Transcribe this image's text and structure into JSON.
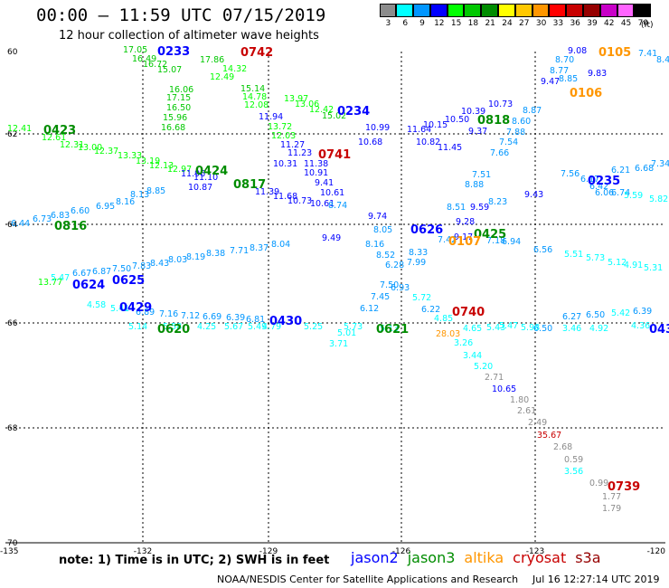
{
  "header": {
    "title": "00:00 – 11:59 UTC 07/15/2019",
    "subtitle": "12 hour collection of altimeter wave heights"
  },
  "color_scale": {
    "unit_label": "(ft)",
    "bins": [
      {
        "label": "3",
        "color": "#8c8c8c"
      },
      {
        "label": "6",
        "color": "#00ffff"
      },
      {
        "label": "9",
        "color": "#0096ff"
      },
      {
        "label": "12",
        "color": "#0000ff"
      },
      {
        "label": "15",
        "color": "#00ff00"
      },
      {
        "label": "18",
        "color": "#00c800"
      },
      {
        "label": "21",
        "color": "#008c00"
      },
      {
        "label": "24",
        "color": "#ffff00"
      },
      {
        "label": "27",
        "color": "#ffc800"
      },
      {
        "label": "30",
        "color": "#ff9600"
      },
      {
        "label": "33",
        "color": "#ff0000"
      },
      {
        "label": "36",
        "color": "#c80000"
      },
      {
        "label": "39",
        "color": "#960000"
      },
      {
        "label": "42",
        "color": "#c800c8"
      },
      {
        "label": "45",
        "color": "#ff64ff"
      },
      {
        "label": "70",
        "color": "#000000"
      }
    ]
  },
  "map": {
    "lat_labels": [
      "60",
      "62",
      "64",
      "66",
      "68",
      "70"
    ],
    "lon_labels": [
      "-135",
      "-132",
      "-129",
      "-126",
      "-123",
      "-120"
    ],
    "pass_labels": [
      {
        "text": "0233",
        "sat": "jason2"
      },
      {
        "text": "0742",
        "sat": "cryosat"
      },
      {
        "text": "0105",
        "sat": "altika"
      },
      {
        "text": "0106",
        "sat": "altika"
      },
      {
        "text": "0234",
        "sat": "jason2"
      },
      {
        "text": "0818",
        "sat": "jason3"
      },
      {
        "text": "0423",
        "sat": "jason3"
      },
      {
        "text": "0741",
        "sat": "cryosat"
      },
      {
        "text": "0424",
        "sat": "jason3"
      },
      {
        "text": "0817",
        "sat": "jason3"
      },
      {
        "text": "0235",
        "sat": "jason2"
      },
      {
        "text": "0816",
        "sat": "jason3"
      },
      {
        "text": "0626",
        "sat": "jason2"
      },
      {
        "text": "0425",
        "sat": "jason3"
      },
      {
        "text": "0107",
        "sat": "altika"
      },
      {
        "text": "0624",
        "sat": "jason2"
      },
      {
        "text": "0625",
        "sat": "jason2"
      },
      {
        "text": "0740",
        "sat": "cryosat"
      },
      {
        "text": "0429",
        "sat": "jason2"
      },
      {
        "text": "0430",
        "sat": "jason2"
      },
      {
        "text": "0620",
        "sat": "jason3"
      },
      {
        "text": "0621",
        "sat": "jason3"
      },
      {
        "text": "043",
        "sat": "jason2"
      },
      {
        "text": "0739",
        "sat": "cryosat"
      }
    ],
    "readings": [
      {
        "text": "17.05"
      },
      {
        "text": "16.49"
      },
      {
        "text": "16.72"
      },
      {
        "text": "15.07"
      },
      {
        "text": "16.06"
      },
      {
        "text": "17.15"
      },
      {
        "text": "16.50"
      },
      {
        "text": "15.96"
      },
      {
        "text": "16.68"
      },
      {
        "text": "17.86"
      },
      {
        "text": "14.32"
      },
      {
        "text": "15.14"
      },
      {
        "text": "14.78"
      },
      {
        "text": "12.08"
      },
      {
        "text": "11.94"
      },
      {
        "text": "13.97"
      },
      {
        "text": "13.06"
      },
      {
        "text": "12.42"
      },
      {
        "text": "15.02"
      },
      {
        "text": "13.72"
      },
      {
        "text": "12.03"
      },
      {
        "text": "12.49"
      },
      {
        "text": "12.41"
      },
      {
        "text": "12.61"
      },
      {
        "text": "12.31"
      },
      {
        "text": "13.00"
      },
      {
        "text": "12.37"
      },
      {
        "text": "13.33"
      },
      {
        "text": "13.19"
      },
      {
        "text": "12.13"
      },
      {
        "text": "12.97"
      },
      {
        "text": "11.96"
      },
      {
        "text": "11.10"
      },
      {
        "text": "10.87"
      },
      {
        "text": "11.27"
      },
      {
        "text": "11.23"
      },
      {
        "text": "10.31"
      },
      {
        "text": "11.38"
      },
      {
        "text": "11.39"
      },
      {
        "text": "11.68"
      },
      {
        "text": "10.91"
      },
      {
        "text": "9.41"
      },
      {
        "text": "10.61"
      },
      {
        "text": "10.73"
      },
      {
        "text": "10.61"
      },
      {
        "text": "8.74"
      },
      {
        "text": "9.74"
      },
      {
        "text": "9.49"
      },
      {
        "text": "8.05"
      },
      {
        "text": "8.16"
      },
      {
        "text": "8.52"
      },
      {
        "text": "6.28"
      },
      {
        "text": "7.99"
      },
      {
        "text": "8.33"
      },
      {
        "text": "7.50"
      },
      {
        "text": "6.93"
      },
      {
        "text": "5.72"
      },
      {
        "text": "7.45"
      },
      {
        "text": "6.12"
      },
      {
        "text": "6.22"
      },
      {
        "text": "4.85"
      },
      {
        "text": "3.71"
      },
      {
        "text": "5.01"
      },
      {
        "text": "28.03"
      },
      {
        "text": "3.26"
      },
      {
        "text": "3.44"
      },
      {
        "text": "5.20"
      },
      {
        "text": "2.71"
      },
      {
        "text": "10.65"
      },
      {
        "text": "1.80"
      },
      {
        "text": "2.61"
      },
      {
        "text": "2.49"
      },
      {
        "text": "35.67"
      },
      {
        "text": "2.68"
      },
      {
        "text": "0.59"
      },
      {
        "text": "3.56"
      },
      {
        "text": "0.99"
      },
      {
        "text": "1.77"
      },
      {
        "text": "1.79"
      },
      {
        "text": "10.99"
      },
      {
        "text": "10.68"
      },
      {
        "text": "11.64"
      },
      {
        "text": "10.15"
      },
      {
        "text": "10.50"
      },
      {
        "text": "10.39"
      },
      {
        "text": "10.82"
      },
      {
        "text": "11.45"
      },
      {
        "text": "9.37"
      },
      {
        "text": "7.54"
      },
      {
        "text": "7.66"
      },
      {
        "text": "7.51"
      },
      {
        "text": "8.88"
      },
      {
        "text": "9.28"
      },
      {
        "text": "9.17"
      },
      {
        "text": "8.51"
      },
      {
        "text": "9.59"
      },
      {
        "text": "8.23"
      },
      {
        "text": "9.43"
      },
      {
        "text": "7.88"
      },
      {
        "text": "8.60"
      },
      {
        "text": "8.87"
      },
      {
        "text": "10.73"
      },
      {
        "text": "9.47"
      },
      {
        "text": "8.77"
      },
      {
        "text": "8.70"
      },
      {
        "text": "8.85"
      },
      {
        "text": "9.83"
      },
      {
        "text": "9.08"
      },
      {
        "text": "7.41"
      },
      {
        "text": "8.44"
      },
      {
        "text": "6.94"
      },
      {
        "text": "6.56"
      },
      {
        "text": "5.51"
      },
      {
        "text": "5.73"
      },
      {
        "text": "5.12"
      },
      {
        "text": "4.91"
      },
      {
        "text": "5.31"
      },
      {
        "text": "6.27"
      },
      {
        "text": "6.50"
      },
      {
        "text": "5.42"
      },
      {
        "text": "6.39"
      },
      {
        "text": "3.46"
      },
      {
        "text": "4.92"
      },
      {
        "text": "6.50"
      },
      {
        "text": "7.56"
      },
      {
        "text": "6.17"
      },
      {
        "text": "6.42"
      },
      {
        "text": "6.06"
      },
      {
        "text": "6.74"
      },
      {
        "text": "5.59"
      },
      {
        "text": "5.82"
      },
      {
        "text": "6.21"
      },
      {
        "text": "6.68"
      },
      {
        "text": "7.34"
      },
      {
        "text": "6.44"
      },
      {
        "text": "6.73"
      },
      {
        "text": "6.83"
      },
      {
        "text": "6.60"
      },
      {
        "text": "6.95"
      },
      {
        "text": "8.16"
      },
      {
        "text": "8.13"
      },
      {
        "text": "8.85"
      },
      {
        "text": "7.42"
      },
      {
        "text": "7.18"
      },
      {
        "text": "13.77"
      },
      {
        "text": "5.47"
      },
      {
        "text": "6.67"
      },
      {
        "text": "6.87"
      },
      {
        "text": "7.50"
      },
      {
        "text": "7.83"
      },
      {
        "text": "8.43"
      },
      {
        "text": "8.03"
      },
      {
        "text": "8.19"
      },
      {
        "text": "8.38"
      },
      {
        "text": "7.71"
      },
      {
        "text": "8.37"
      },
      {
        "text": "8.04"
      },
      {
        "text": "4.58"
      },
      {
        "text": "5.41"
      },
      {
        "text": "6.89"
      },
      {
        "text": "7.16"
      },
      {
        "text": "7.12"
      },
      {
        "text": "6.69"
      },
      {
        "text": "6.39"
      },
      {
        "text": "6.81"
      },
      {
        "text": "5.14"
      },
      {
        "text": "5.58"
      },
      {
        "text": "4.25"
      },
      {
        "text": "5.67"
      },
      {
        "text": "5.49"
      },
      {
        "text": "4.79"
      },
      {
        "text": "5.25"
      },
      {
        "text": "5.73"
      },
      {
        "text": "5.13"
      },
      {
        "text": "4.65"
      },
      {
        "text": "5.43"
      },
      {
        "text": "5.47"
      },
      {
        "text": "5.98"
      },
      {
        "text": "4.36"
      }
    ]
  },
  "footer": {
    "note": "note: 1) Time is in UTC; 2) SWH is in feet",
    "satellites": [
      {
        "name": "jason2",
        "color": "#0000ff"
      },
      {
        "name": "jason3",
        "color": "#008c00"
      },
      {
        "name": "altika",
        "color": "#ff9600"
      },
      {
        "name": "cryosat",
        "color": "#c80000"
      },
      {
        "name": "s3a",
        "color": "#960000"
      }
    ],
    "credit": "NOAA/NESDIS Center for Satellite Applications and Research",
    "timestamp": "Jul 16 12:27:14 UTC 2019"
  }
}
